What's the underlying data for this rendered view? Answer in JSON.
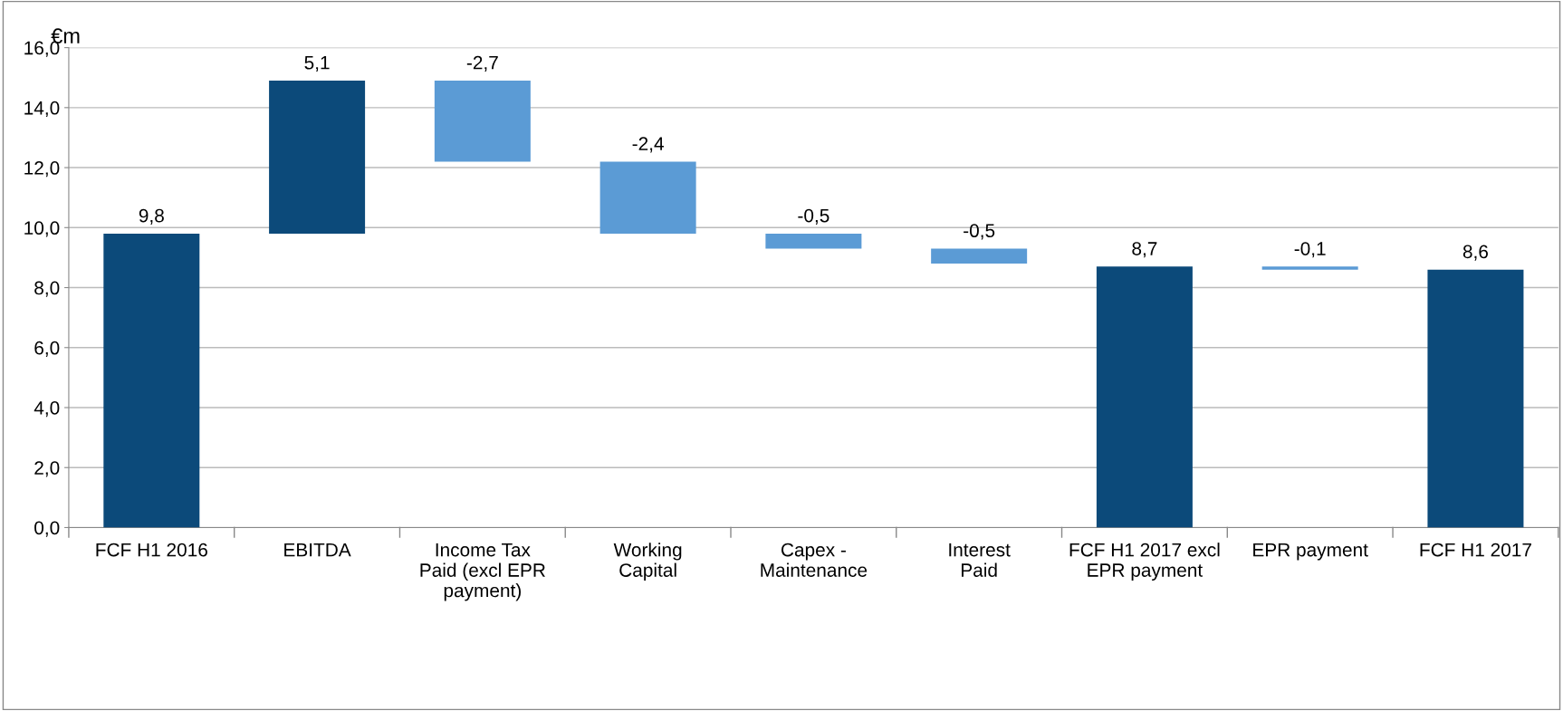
{
  "chart_data": {
    "type": "bar",
    "ylabel": "€m",
    "categories": [
      "FCF H1 2016",
      "EBITDA",
      "Income Tax\nPaid (excl EPR\npayment)",
      "Working\nCapital",
      "Capex -\nMaintenance",
      "Interest\nPaid",
      "FCF H1 2017 excl\nEPR payment",
      "EPR payment",
      "FCF H1 2017"
    ],
    "values": [
      9.8,
      5.1,
      -2.7,
      -2.4,
      -0.5,
      -0.5,
      8.7,
      -0.1,
      8.6
    ],
    "base": [
      0,
      9.8,
      14.9,
      12.2,
      9.8,
      9.3,
      0,
      8.7,
      0
    ],
    "colors": [
      "#0c4a7a",
      "#0c4a7a",
      "#5b9bd5",
      "#5b9bd5",
      "#5b9bd5",
      "#5b9bd5",
      "#0c4a7a",
      "#5b9bd5",
      "#0c4a7a"
    ],
    "value_labels": [
      "9,8",
      "5,1",
      "-2,7",
      "-2,4",
      "-0,5",
      "-0,5",
      "8,7",
      "-0,1",
      "8,6"
    ],
    "ylim": [
      0,
      16
    ],
    "yticks": [
      {
        "value": 0,
        "label": "0,0"
      },
      {
        "value": 2,
        "label": "2,0"
      },
      {
        "value": 4,
        "label": "4,0"
      },
      {
        "value": 6,
        "label": "6,0"
      },
      {
        "value": 8,
        "label": "8,0"
      },
      {
        "value": 10,
        "label": "10,0"
      },
      {
        "value": 12,
        "label": "12,0"
      },
      {
        "value": 14,
        "label": "14,0"
      },
      {
        "value": 16,
        "label": "16,0"
      }
    ],
    "grid": "y"
  }
}
